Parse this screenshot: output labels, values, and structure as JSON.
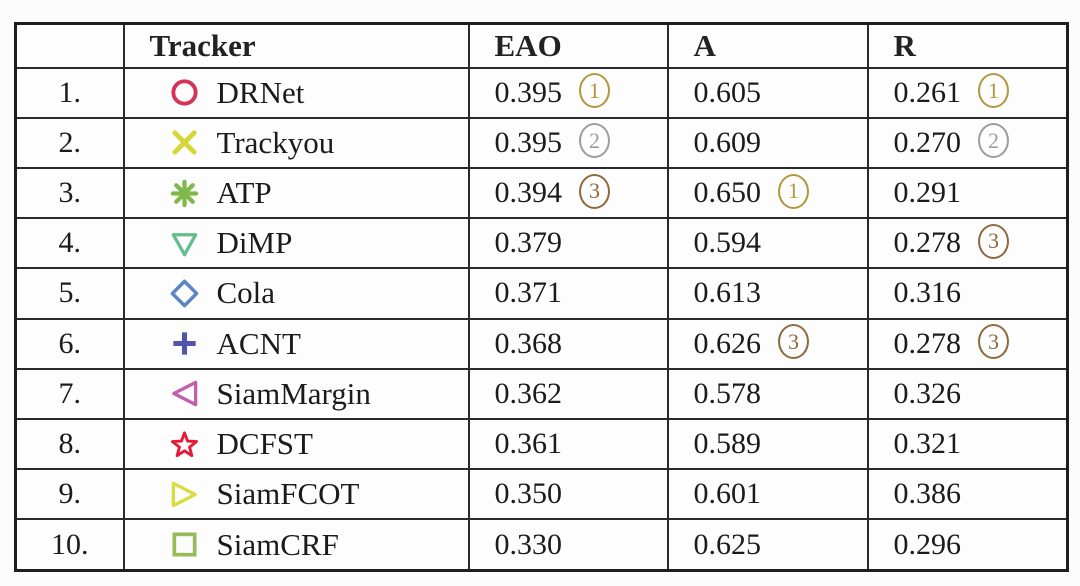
{
  "table": {
    "headers": {
      "rank": "",
      "tracker": "Tracker",
      "eao": "EAO",
      "a": "A",
      "r": "R"
    },
    "medal_colors": {
      "1": "#b3973f",
      "2": "#9d9d9d",
      "3": "#8d6a3c"
    },
    "rows": [
      {
        "rank": "1.",
        "tracker": "DRNet",
        "marker": "circle",
        "marker_color": "#d43455",
        "eao": "0.395",
        "eao_medal": "1",
        "a": "0.605",
        "a_medal": "",
        "r": "0.261",
        "r_medal": "1"
      },
      {
        "rank": "2.",
        "tracker": "Trackyou",
        "marker": "x-cross",
        "marker_color": "#d6d637",
        "eao": "0.395",
        "eao_medal": "2",
        "a": "0.609",
        "a_medal": "",
        "r": "0.270",
        "r_medal": "2"
      },
      {
        "rank": "3.",
        "tracker": "ATP",
        "marker": "asterisk",
        "marker_color": "#80b94a",
        "eao": "0.394",
        "eao_medal": "3",
        "a": "0.650",
        "a_medal": "1",
        "r": "0.291",
        "r_medal": ""
      },
      {
        "rank": "4.",
        "tracker": "DiMP",
        "marker": "triangle-down",
        "marker_color": "#63bd8e",
        "eao": "0.379",
        "eao_medal": "",
        "a": "0.594",
        "a_medal": "",
        "r": "0.278",
        "r_medal": "3"
      },
      {
        "rank": "5.",
        "tracker": "Cola",
        "marker": "diamond",
        "marker_color": "#5b86c3",
        "eao": "0.371",
        "eao_medal": "",
        "a": "0.613",
        "a_medal": "",
        "r": "0.316",
        "r_medal": ""
      },
      {
        "rank": "6.",
        "tracker": "ACNT",
        "marker": "plus",
        "marker_color": "#5154ad",
        "eao": "0.368",
        "eao_medal": "",
        "a": "0.626",
        "a_medal": "3",
        "r": "0.278",
        "r_medal": "3"
      },
      {
        "rank": "7.",
        "tracker": "SiamMargin",
        "marker": "triangle-left",
        "marker_color": "#c45fb0",
        "eao": "0.362",
        "eao_medal": "",
        "a": "0.578",
        "a_medal": "",
        "r": "0.326",
        "r_medal": ""
      },
      {
        "rank": "8.",
        "tracker": "DCFST",
        "marker": "star",
        "marker_color": "#e51a39",
        "eao": "0.361",
        "eao_medal": "",
        "a": "0.589",
        "a_medal": "",
        "r": "0.321",
        "r_medal": ""
      },
      {
        "rank": "9.",
        "tracker": "SiamFCOT",
        "marker": "triangle-right",
        "marker_color": "#d9dd41",
        "eao": "0.350",
        "eao_medal": "",
        "a": "0.601",
        "a_medal": "",
        "r": "0.386",
        "r_medal": ""
      },
      {
        "rank": "10.",
        "tracker": "SiamCRF",
        "marker": "square",
        "marker_color": "#97bb59",
        "eao": "0.330",
        "eao_medal": "",
        "a": "0.625",
        "a_medal": "",
        "r": "0.296",
        "r_medal": ""
      }
    ]
  }
}
